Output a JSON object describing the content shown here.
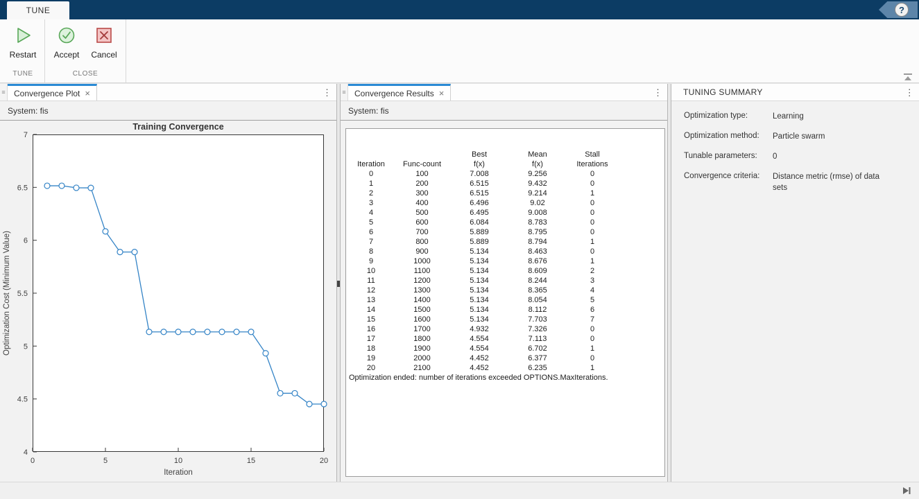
{
  "toolstrip": {
    "ribbon_tab": "TUNE",
    "help_glyph": "?",
    "buttons": {
      "restart": "Restart",
      "accept": "Accept",
      "cancel": "Cancel"
    },
    "groups": {
      "tune": "TUNE",
      "close": "CLOSE"
    }
  },
  "glyphs": {
    "close": "×",
    "menu": "⋮",
    "handle": "≡"
  },
  "panels": {
    "plot": {
      "tab": "Convergence Plot",
      "system": "System: fis"
    },
    "results": {
      "tab": "Convergence Results",
      "system": "System: fis",
      "table": {
        "header_row1": [
          "",
          "",
          "Best",
          "Mean",
          "Stall"
        ],
        "header_row2": [
          "Iteration",
          "Func-count",
          "f(x)",
          "f(x)",
          "Iterations"
        ],
        "rows": [
          [
            "0",
            "100",
            "7.008",
            "9.256",
            "0"
          ],
          [
            "1",
            "200",
            "6.515",
            "9.432",
            "0"
          ],
          [
            "2",
            "300",
            "6.515",
            "9.214",
            "1"
          ],
          [
            "3",
            "400",
            "6.496",
            "9.02",
            "0"
          ],
          [
            "4",
            "500",
            "6.495",
            "9.008",
            "0"
          ],
          [
            "5",
            "600",
            "6.084",
            "8.783",
            "0"
          ],
          [
            "6",
            "700",
            "5.889",
            "8.795",
            "0"
          ],
          [
            "7",
            "800",
            "5.889",
            "8.794",
            "1"
          ],
          [
            "8",
            "900",
            "5.134",
            "8.463",
            "0"
          ],
          [
            "9",
            "1000",
            "5.134",
            "8.676",
            "1"
          ],
          [
            "10",
            "1100",
            "5.134",
            "8.609",
            "2"
          ],
          [
            "11",
            "1200",
            "5.134",
            "8.244",
            "3"
          ],
          [
            "12",
            "1300",
            "5.134",
            "8.365",
            "4"
          ],
          [
            "13",
            "1400",
            "5.134",
            "8.054",
            "5"
          ],
          [
            "14",
            "1500",
            "5.134",
            "8.112",
            "6"
          ],
          [
            "15",
            "1600",
            "5.134",
            "7.703",
            "7"
          ],
          [
            "16",
            "1700",
            "4.932",
            "7.326",
            "0"
          ],
          [
            "17",
            "1800",
            "4.554",
            "7.113",
            "0"
          ],
          [
            "18",
            "1900",
            "4.554",
            "6.702",
            "1"
          ],
          [
            "19",
            "2000",
            "4.452",
            "6.377",
            "0"
          ],
          [
            "20",
            "2100",
            "4.452",
            "6.235",
            "1"
          ]
        ],
        "footer": "Optimization ended: number of iterations exceeded OPTIONS.MaxIterations."
      }
    },
    "summary": {
      "title": "TUNING SUMMARY",
      "fields": [
        {
          "label": "Optimization type:",
          "value": "Learning"
        },
        {
          "label": "Optimization method:",
          "value": "Particle swarm"
        },
        {
          "label": "Tunable parameters:",
          "value": "0"
        },
        {
          "label": "Convergence criteria:",
          "value": "Distance metric (rmse) of data sets"
        }
      ]
    }
  },
  "chart_data": {
    "type": "line",
    "title": "Training Convergence",
    "xlabel": "Iteration",
    "ylabel": "Optimization Cost (Minimum Value)",
    "x": [
      1,
      2,
      3,
      4,
      5,
      6,
      7,
      8,
      9,
      10,
      11,
      12,
      13,
      14,
      15,
      16,
      17,
      18,
      19,
      20
    ],
    "y": [
      6.515,
      6.515,
      6.496,
      6.495,
      6.084,
      5.889,
      5.889,
      5.134,
      5.134,
      5.134,
      5.134,
      5.134,
      5.134,
      5.134,
      5.134,
      4.932,
      4.554,
      4.554,
      4.452,
      4.452
    ],
    "xlim": [
      0,
      20
    ],
    "ylim": [
      4,
      7
    ],
    "xticks": [
      0,
      5,
      10,
      15,
      20
    ],
    "yticks": [
      4,
      4.5,
      5,
      5.5,
      6,
      6.5,
      7
    ],
    "grid": false,
    "legend_position": null,
    "line_color": "#3383c6",
    "marker": "o"
  },
  "colors": {
    "titlebar": "#0c3c64",
    "tab_accent": "#2a8ad4",
    "line": "#3383c6",
    "restart_green": "#58a758",
    "cancel_red": "#b94a48"
  }
}
